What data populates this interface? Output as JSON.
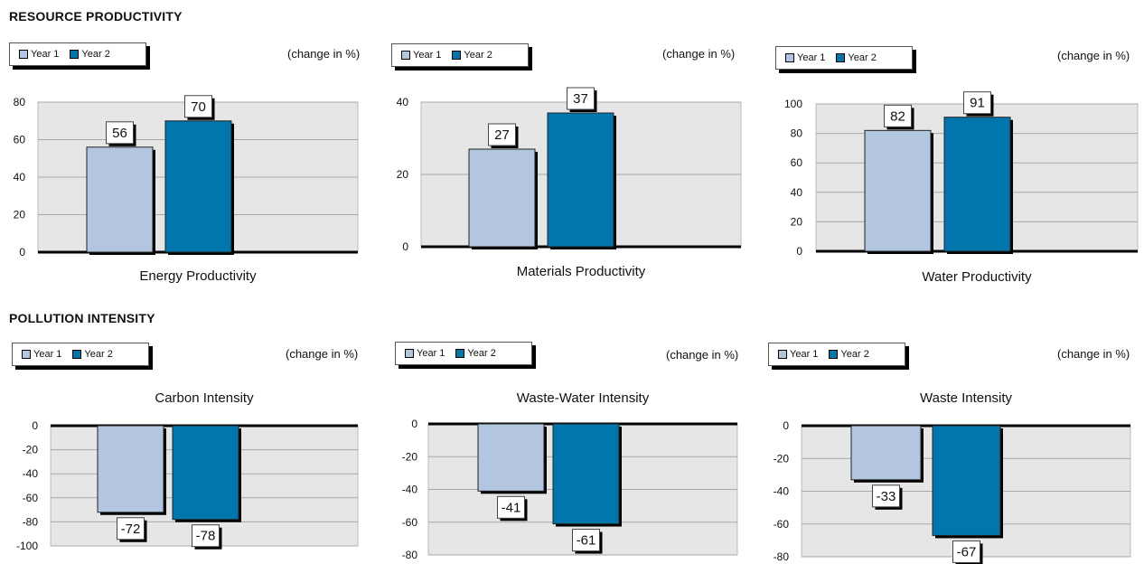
{
  "sections": [
    {
      "title": "RESOURCE  PRODUCTIVITY"
    },
    {
      "title": "POLLUTION INTENSITY"
    }
  ],
  "legend": {
    "series1": "Year 1",
    "series2": "Year 2"
  },
  "unit_label": "(change in %)",
  "colors": {
    "year1": "#b3c6e0",
    "year2": "#0076ad",
    "plot_bg": "#e6e6e6"
  },
  "chart_data": [
    {
      "type": "bar",
      "title": "Energy Productivity",
      "categories": [
        "Year 1",
        "Year 2"
      ],
      "values": [
        56,
        70
      ],
      "ylim": [
        0,
        80
      ],
      "yticks": [
        0,
        20,
        40,
        60,
        80
      ]
    },
    {
      "type": "bar",
      "title": "Materials Productivity",
      "categories": [
        "Year 1",
        "Year 2"
      ],
      "values": [
        27,
        37
      ],
      "ylim": [
        0,
        40
      ],
      "yticks": [
        0,
        20,
        40
      ]
    },
    {
      "type": "bar",
      "title": "Water Productivity",
      "categories": [
        "Year 1",
        "Year 2"
      ],
      "values": [
        82,
        91
      ],
      "ylim": [
        0,
        100
      ],
      "yticks": [
        0,
        20,
        40,
        60,
        80,
        100
      ]
    },
    {
      "type": "bar",
      "title": "Carbon Intensity",
      "categories": [
        "Year 1",
        "Year 2"
      ],
      "values": [
        -72,
        -78
      ],
      "ylim": [
        -100,
        0
      ],
      "yticks": [
        0,
        -20,
        -40,
        -60,
        -80,
        -100
      ]
    },
    {
      "type": "bar",
      "title": "Waste-Water Intensity",
      "categories": [
        "Year 1",
        "Year 2"
      ],
      "values": [
        -41,
        -61
      ],
      "ylim": [
        -80,
        0
      ],
      "yticks": [
        0,
        -20,
        -40,
        -60,
        -80
      ]
    },
    {
      "type": "bar",
      "title": "Waste Intensity",
      "categories": [
        "Year 1",
        "Year 2"
      ],
      "values": [
        -33,
        -67
      ],
      "ylim": [
        -80,
        0
      ],
      "yticks": [
        0,
        -20,
        -40,
        -60,
        -80
      ]
    }
  ]
}
